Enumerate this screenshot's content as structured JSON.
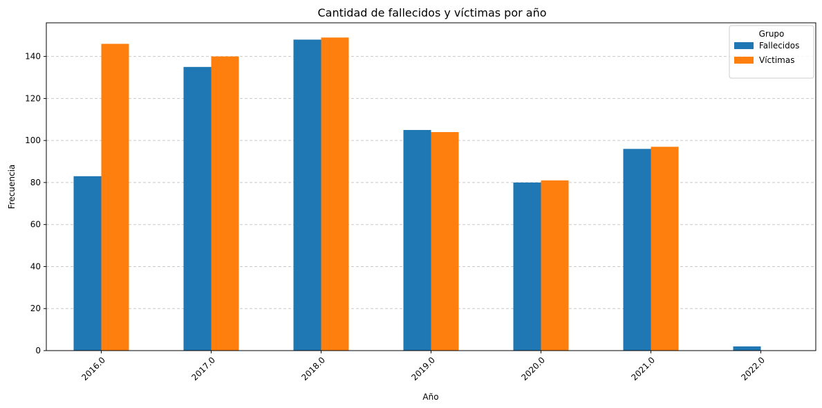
{
  "chart_data": {
    "type": "bar",
    "title": "Cantidad de fallecidos y víctimas por año",
    "xlabel": "Año",
    "ylabel": "Frecuencia",
    "categories": [
      "2016.0",
      "2017.0",
      "2018.0",
      "2019.0",
      "2020.0",
      "2021.0",
      "2022.0"
    ],
    "series": [
      {
        "name": "Fallecidos",
        "color": "#1f77b4",
        "values": [
          83,
          135,
          148,
          105,
          80,
          96,
          2
        ]
      },
      {
        "name": "Víctimas",
        "color": "#ff7f0e",
        "values": [
          146,
          140,
          149,
          104,
          81,
          97,
          0
        ]
      }
    ],
    "ylim": [
      0,
      156
    ],
    "yticks": [
      0,
      20,
      40,
      60,
      80,
      100,
      120,
      140
    ],
    "grid": "y-dashed",
    "legend": {
      "title": "Grupo",
      "position": "top-right"
    },
    "xtick_rotation": 45
  }
}
